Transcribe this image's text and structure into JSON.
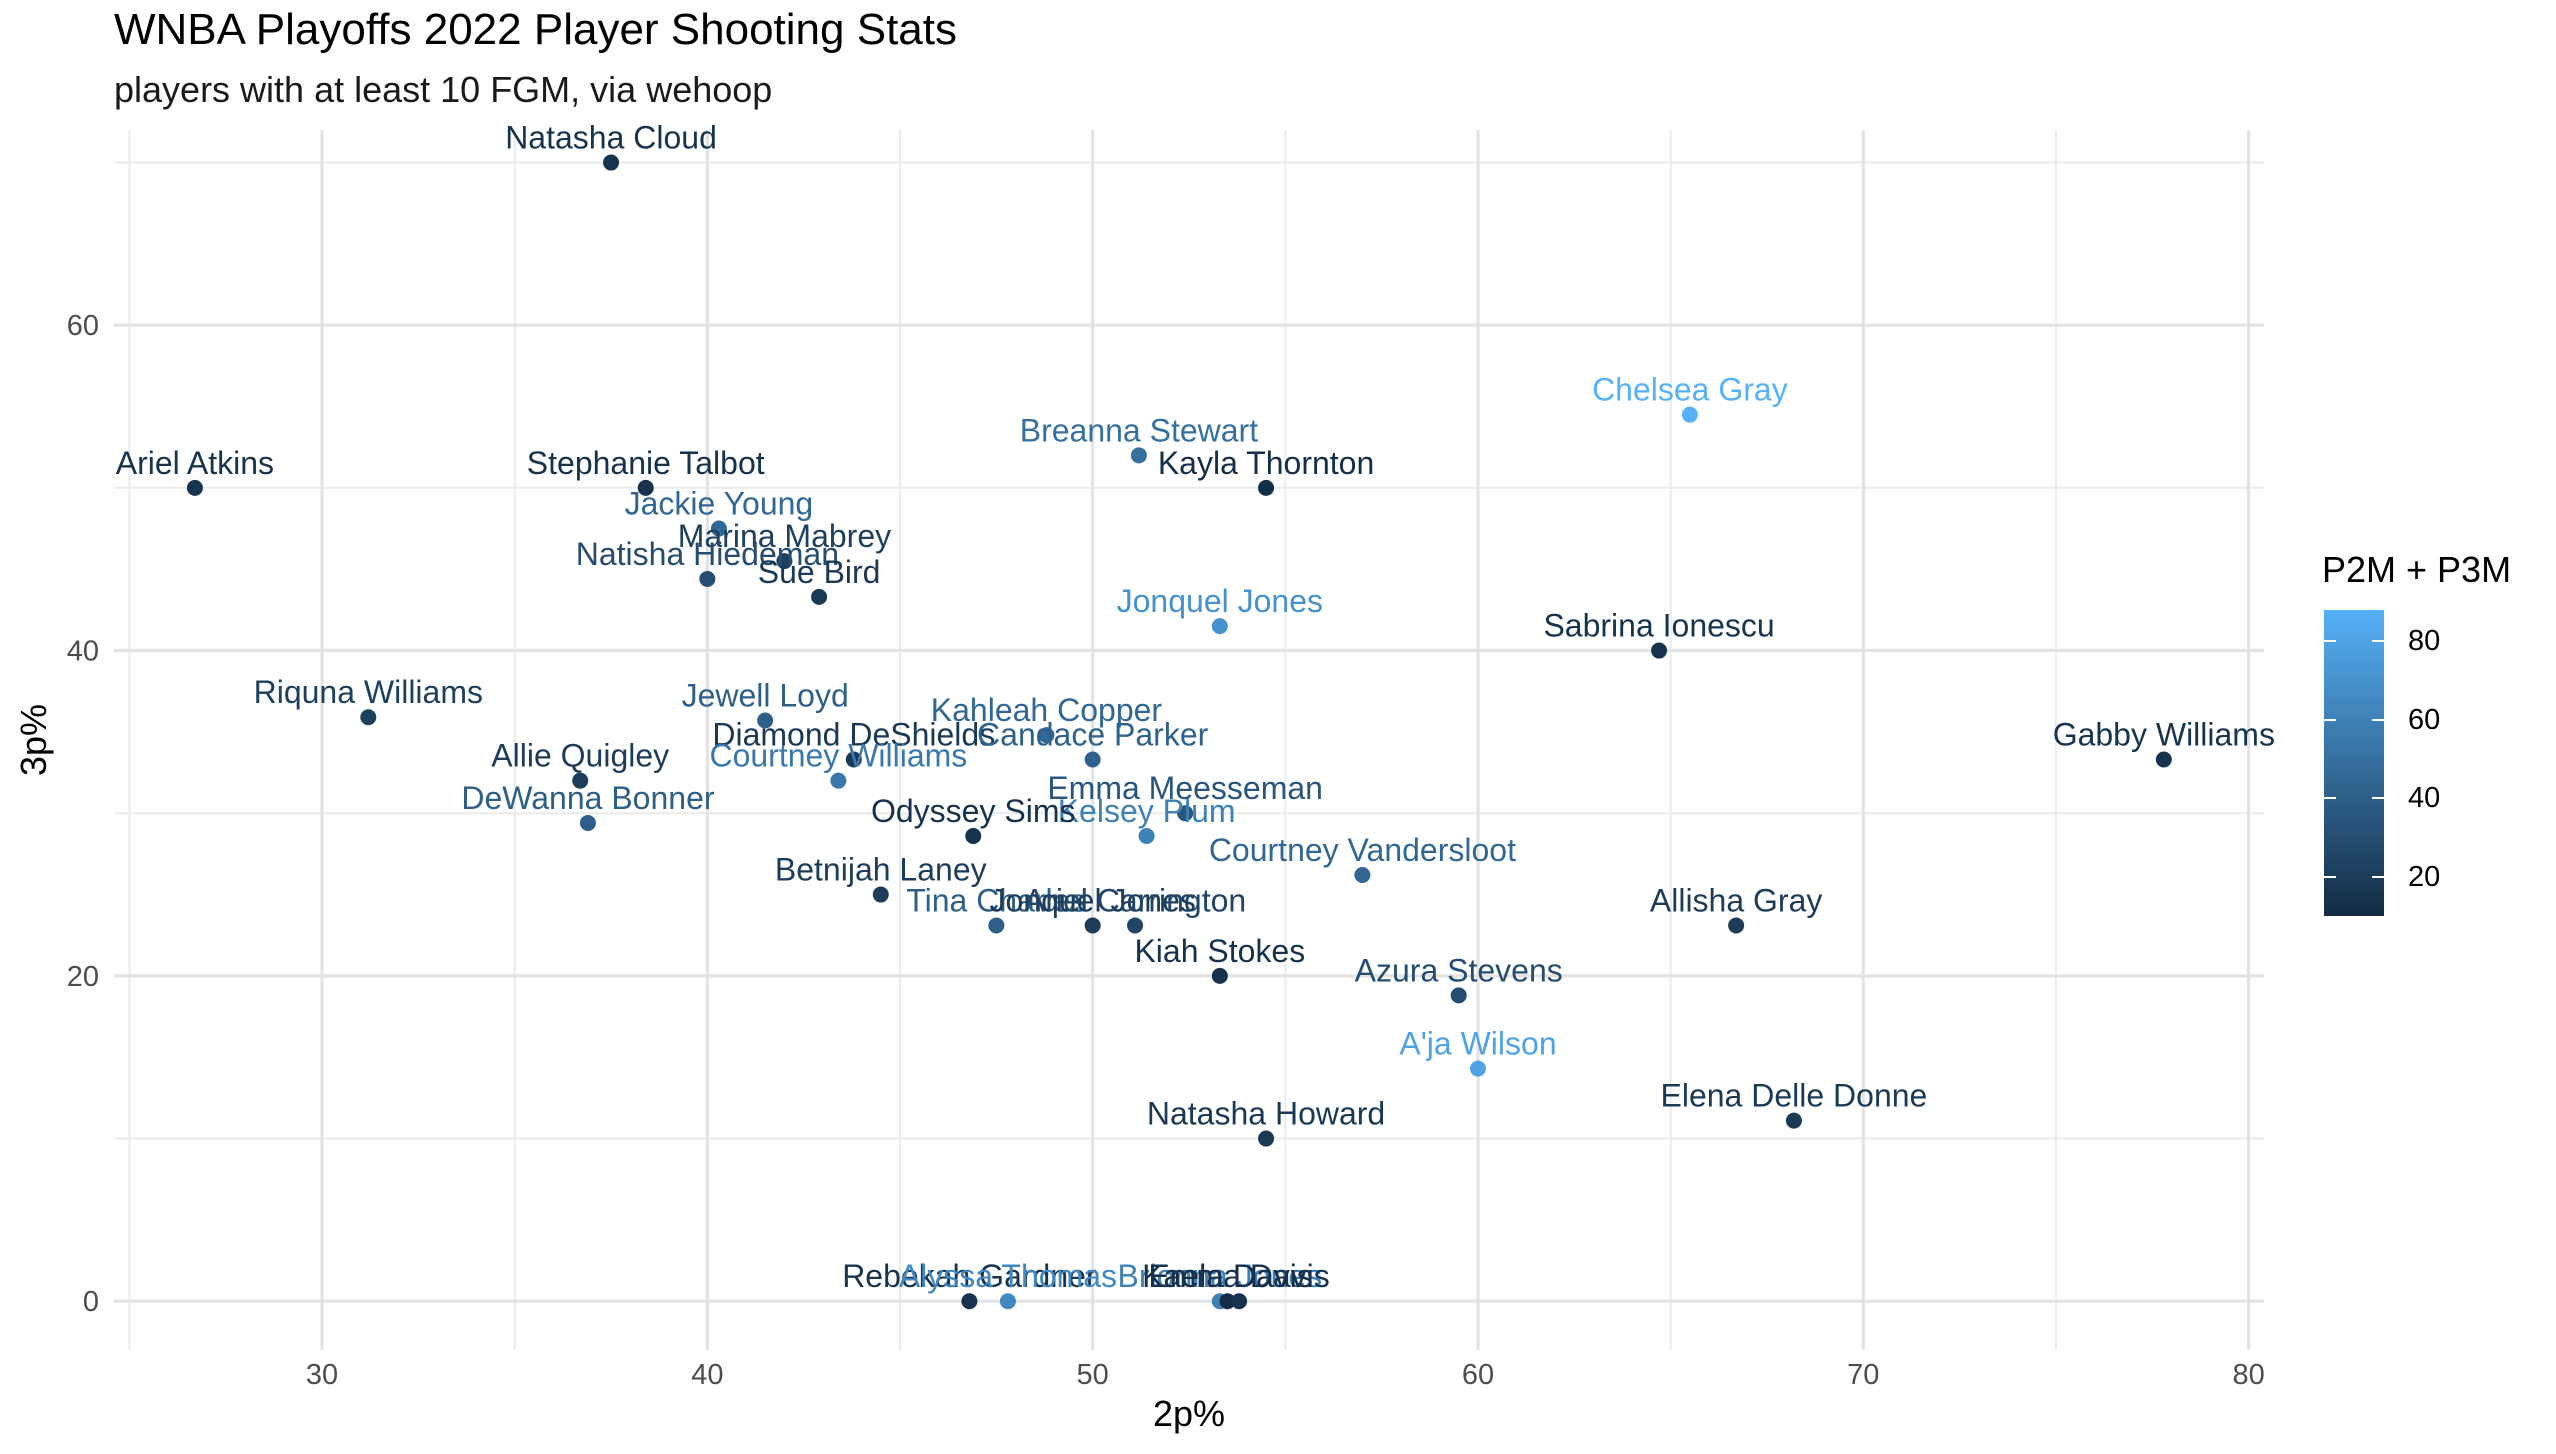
{
  "chart_data": {
    "type": "scatter",
    "title": "WNBA Playoffs 2022 Player Shooting Stats",
    "subtitle": "players with at least 10 FGM, via wehoop",
    "xlabel": "2p%",
    "ylabel": "3p%",
    "xlim": [
      24.6,
      80.4
    ],
    "ylim": [
      -3,
      72
    ],
    "x_ticks": [
      "30",
      "40",
      "50",
      "60",
      "70",
      "80"
    ],
    "y_ticks": [
      "0",
      "20",
      "40",
      "60"
    ],
    "x_tick_values": [
      30,
      40,
      50,
      60,
      70,
      80
    ],
    "y_tick_values": [
      0,
      20,
      40,
      60
    ],
    "grid": true,
    "legend": {
      "title": "P2M + P3M",
      "position": "right",
      "range": [
        10,
        88
      ],
      "ticks": [
        "20",
        "40",
        "60",
        "80"
      ],
      "tick_values": [
        20,
        40,
        60,
        80
      ],
      "low_color": "#132b43",
      "high_color": "#56b1f7"
    },
    "points": [
      {
        "name": "Natasha Cloud",
        "x": 37.5,
        "y": 70.0,
        "color_value": 15
      },
      {
        "name": "Chelsea Gray",
        "x": 65.5,
        "y": 54.5,
        "color_value": 88
      },
      {
        "name": "Breanna Stewart",
        "x": 51.2,
        "y": 52.0,
        "color_value": 50
      },
      {
        "name": "Kayla Thornton",
        "x": 54.5,
        "y": 50.0,
        "color_value": 12
      },
      {
        "name": "Ariel Atkins",
        "x": 26.7,
        "y": 50.0,
        "color_value": 15
      },
      {
        "name": "Stephanie Talbot",
        "x": 38.4,
        "y": 50.0,
        "color_value": 14
      },
      {
        "name": "Jackie Young",
        "x": 40.3,
        "y": 47.5,
        "color_value": 45
      },
      {
        "name": "Marina Mabrey",
        "x": 42.0,
        "y": 45.5,
        "color_value": 22
      },
      {
        "name": "Natisha Hiedeman",
        "x": 40.0,
        "y": 44.4,
        "color_value": 30
      },
      {
        "name": "Sue Bird",
        "x": 42.9,
        "y": 43.3,
        "color_value": 18
      },
      {
        "name": "Jonquel Jones",
        "x": 53.3,
        "y": 41.5,
        "color_value": 70
      },
      {
        "name": "Sabrina Ionescu",
        "x": 64.7,
        "y": 40.0,
        "color_value": 15
      },
      {
        "name": "Riquna Williams",
        "x": 31.2,
        "y": 35.9,
        "color_value": 22
      },
      {
        "name": "Jewell Loyd",
        "x": 41.5,
        "y": 35.7,
        "color_value": 40
      },
      {
        "name": "Kahleah Copper",
        "x": 48.8,
        "y": 34.8,
        "color_value": 45
      },
      {
        "name": "Diamond DeShields",
        "x": 43.8,
        "y": 33.3,
        "color_value": 18
      },
      {
        "name": "Candace Parker",
        "x": 50.0,
        "y": 33.3,
        "color_value": 42
      },
      {
        "name": "Gabby Williams",
        "x": 77.8,
        "y": 33.3,
        "color_value": 15
      },
      {
        "name": "Courtney Williams",
        "x": 43.4,
        "y": 32.0,
        "color_value": 55
      },
      {
        "name": "Allie Quigley",
        "x": 36.7,
        "y": 32.0,
        "color_value": 20
      },
      {
        "name": "Emma Meesseman",
        "x": 52.4,
        "y": 30.0,
        "color_value": 35
      },
      {
        "name": "DeWanna Bonner",
        "x": 36.9,
        "y": 29.4,
        "color_value": 40
      },
      {
        "name": "Kelsey Plum",
        "x": 51.4,
        "y": 28.6,
        "color_value": 60
      },
      {
        "name": "Odyssey Sims",
        "x": 46.9,
        "y": 28.6,
        "color_value": 14
      },
      {
        "name": "Courtney Vandersloot",
        "x": 57.0,
        "y": 26.2,
        "color_value": 45
      },
      {
        "name": "Betnijah Laney",
        "x": 44.5,
        "y": 25.0,
        "color_value": 20
      },
      {
        "name": "Tina Charles",
        "x": 47.5,
        "y": 23.1,
        "color_value": 40
      },
      {
        "name": "Jonquel Jones",
        "x": 50.0,
        "y": 23.1,
        "color_value": 20
      },
      {
        "name": "Ariel Carrington",
        "x": 51.1,
        "y": 23.1,
        "color_value": 25
      },
      {
        "name": "Allisha Gray",
        "x": 66.7,
        "y": 23.1,
        "color_value": 20
      },
      {
        "name": "Kiah Stokes",
        "x": 53.3,
        "y": 20.0,
        "color_value": 14
      },
      {
        "name": "Azura Stevens",
        "x": 59.5,
        "y": 18.8,
        "color_value": 30
      },
      {
        "name": "A'ja Wilson",
        "x": 60.0,
        "y": 14.3,
        "color_value": 80
      },
      {
        "name": "Elena Delle Donne",
        "x": 68.2,
        "y": 11.1,
        "color_value": 18
      },
      {
        "name": "Natasha Howard",
        "x": 54.5,
        "y": 10.0,
        "color_value": 18
      },
      {
        "name": "Rebekah Gardner",
        "x": 46.8,
        "y": 0.0,
        "color_value": 15
      },
      {
        "name": "Alyssa Thomas",
        "x": 47.8,
        "y": 0.0,
        "color_value": 65
      },
      {
        "name": "Brionna Jones",
        "x": 53.3,
        "y": 0.0,
        "color_value": 60
      },
      {
        "name": "Kaela Davis",
        "x": 53.5,
        "y": 0.0,
        "color_value": 12
      },
      {
        "name": "Emma Davis",
        "x": 53.8,
        "y": 0.0,
        "color_value": 14
      }
    ]
  }
}
